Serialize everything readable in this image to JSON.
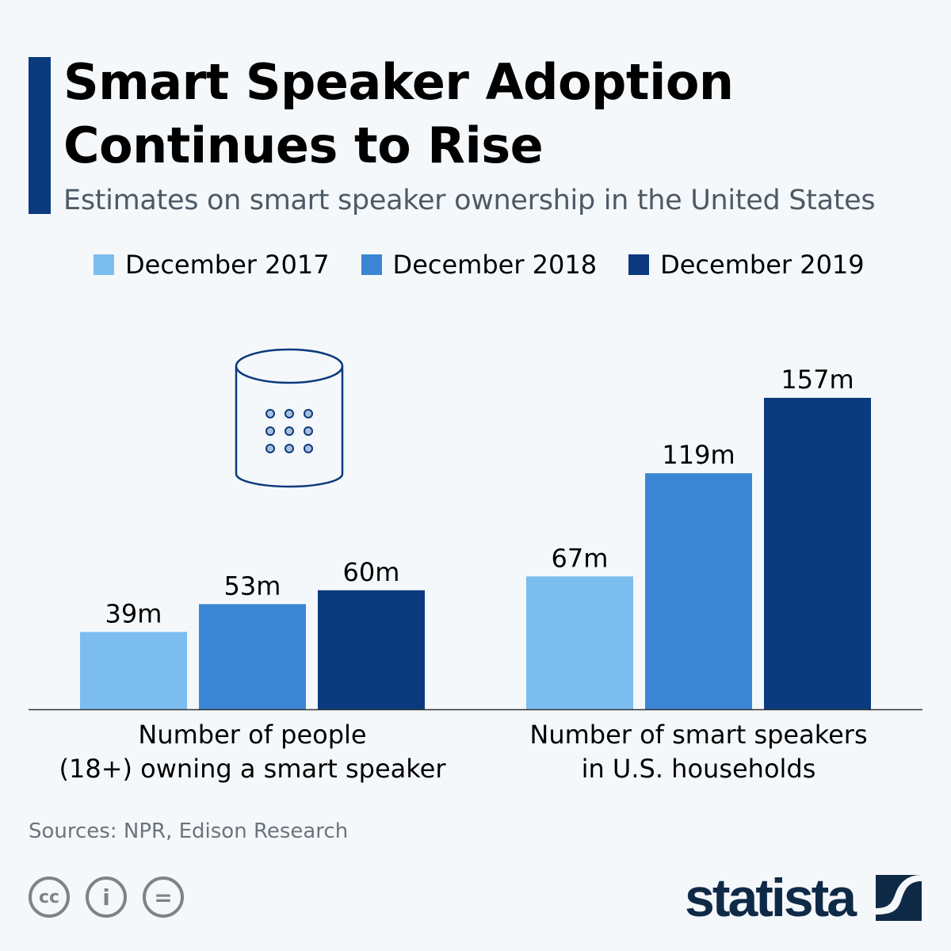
{
  "header": {
    "title_line1": "Smart Speaker Adoption",
    "title_line2": "Continues to Rise",
    "subtitle": "Estimates on smart speaker ownership in the United States"
  },
  "chart_data": {
    "type": "bar",
    "categories": [
      "Number of people (18+) owning a smart speaker",
      "Number of smart speakers in U.S. households"
    ],
    "category_lines": [
      [
        "Number of people",
        "(18+) owning a smart speaker"
      ],
      [
        "Number of smart speakers",
        "in U.S. households"
      ]
    ],
    "series": [
      {
        "name": "December 2017",
        "values": [
          39,
          67
        ],
        "labels": [
          "39m",
          "67m"
        ],
        "color": "#7cbdf0"
      },
      {
        "name": "December 2018",
        "values": [
          53,
          119
        ],
        "labels": [
          "53m",
          "119m"
        ],
        "color": "#3a86d4"
      },
      {
        "name": "December 2019",
        "values": [
          60,
          157
        ],
        "labels": [
          "60m",
          "157m"
        ],
        "color": "#0b3a7e"
      }
    ],
    "unit": "m",
    "legend": "top",
    "grid": false
  },
  "footer": {
    "source": "Sources: NPR, Edison Research",
    "logo": "statista",
    "license_icons": [
      "cc-icon",
      "attribution-icon",
      "no-derivatives-icon"
    ]
  }
}
